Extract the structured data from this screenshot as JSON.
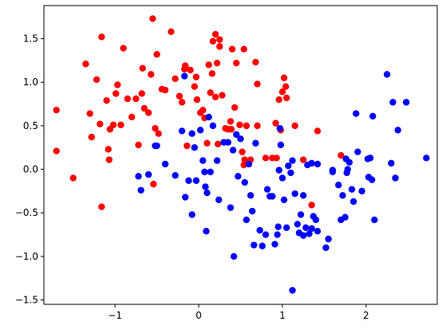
{
  "chart_data": {
    "type": "scatter",
    "title": "",
    "xlabel": "",
    "ylabel": "",
    "xlim": [
      -1.85,
      2.85
    ],
    "ylim": [
      -1.55,
      1.88
    ],
    "xticks": [
      -1,
      0,
      1,
      2
    ],
    "yticks": [
      -1.5,
      -1.0,
      -0.5,
      0.0,
      0.5,
      1.0,
      1.5
    ],
    "xtick_labels": [
      "−1",
      "0",
      "1",
      "2"
    ],
    "ytick_labels": [
      "−1.5",
      "−1.0",
      "−0.5",
      "0.0",
      "0.5",
      "1.0",
      "1.5"
    ],
    "grid": false,
    "legend": false,
    "series": [
      {
        "color": "#ff0000",
        "points": [
          [
            -1.7,
            0.68
          ],
          [
            -1.7,
            0.21
          ],
          [
            -1.5,
            -0.1
          ],
          [
            -1.35,
            1.21
          ],
          [
            -1.3,
            0.64
          ],
          [
            -1.28,
            0.37
          ],
          [
            -1.22,
            1.03
          ],
          [
            -1.18,
            0.52
          ],
          [
            -1.16,
            1.52
          ],
          [
            -1.16,
            -0.43
          ],
          [
            -1.1,
            0.79
          ],
          [
            -1.08,
            0.23
          ],
          [
            -1.07,
            0.11
          ],
          [
            -1.06,
            0.46
          ],
          [
            -1.02,
            0.51
          ],
          [
            -0.99,
            0.87
          ],
          [
            -0.97,
            0.97
          ],
          [
            -0.93,
            0.51
          ],
          [
            -0.9,
            1.39
          ],
          [
            -0.85,
            0.81
          ],
          [
            -0.8,
            0.6
          ],
          [
            -0.75,
            0.81
          ],
          [
            -0.72,
            0.28
          ],
          [
            -0.68,
            0.87
          ],
          [
            -0.67,
            1.16
          ],
          [
            -0.65,
            0.7
          ],
          [
            -0.6,
            0.65
          ],
          [
            -0.57,
            1.09
          ],
          [
            -0.55,
            1.73
          ],
          [
            -0.54,
            -0.17
          ],
          [
            -0.52,
            0.47
          ],
          [
            -0.5,
            1.32
          ],
          [
            -0.48,
            0.41
          ],
          [
            -0.44,
            0.92
          ],
          [
            -0.4,
            0.91
          ],
          [
            -0.33,
            1.58
          ],
          [
            -0.28,
            1.04
          ],
          [
            -0.23,
            0.84
          ],
          [
            -0.2,
            0.77
          ],
          [
            -0.17,
            1.15
          ],
          [
            -0.16,
            1.19
          ],
          [
            -0.14,
            0.27
          ],
          [
            -0.1,
            1.14
          ],
          [
            -0.05,
            0.95
          ],
          [
            -0.03,
            1.06
          ],
          [
            -0.02,
            0.8
          ],
          [
            0.02,
            0.65
          ],
          [
            0.05,
            0.68
          ],
          [
            0.07,
            0.59
          ],
          [
            0.1,
            0.3
          ],
          [
            0.12,
            1.2
          ],
          [
            0.14,
            0.88
          ],
          [
            0.16,
            1.1
          ],
          [
            0.17,
            1.47
          ],
          [
            0.2,
            1.55
          ],
          [
            0.2,
            0.83
          ],
          [
            0.22,
            1.22
          ],
          [
            0.23,
            0.29
          ],
          [
            0.25,
            1.41
          ],
          [
            0.25,
            1.49
          ],
          [
            0.28,
            0.85
          ],
          [
            0.32,
            0.47
          ],
          [
            0.35,
            0.46
          ],
          [
            0.38,
            0.55
          ],
          [
            0.39,
            0.46
          ],
          [
            0.4,
            1.38
          ],
          [
            0.43,
            0.71
          ],
          [
            0.45,
            1.22
          ],
          [
            0.49,
            0.51
          ],
          [
            0.52,
            0.2
          ],
          [
            0.54,
            1.38
          ],
          [
            0.54,
            0.05
          ],
          [
            0.55,
            0.11
          ],
          [
            0.57,
            0.5
          ],
          [
            0.62,
            0.11
          ],
          [
            0.68,
            1.23
          ],
          [
            0.7,
            0.98
          ],
          [
            0.7,
            0.5
          ],
          [
            0.8,
            0.13
          ],
          [
            0.88,
            0.13
          ],
          [
            0.92,
            0.53
          ],
          [
            0.93,
            0.13
          ],
          [
            0.96,
            0.8
          ],
          [
            0.98,
            0.45
          ],
          [
            1.0,
            0.89
          ],
          [
            1.02,
            1.05
          ],
          [
            1.04,
            0.95
          ],
          [
            1.05,
            0.82
          ],
          [
            1.15,
            0.5
          ],
          [
            1.25,
            0.11
          ],
          [
            1.35,
            -0.41
          ],
          [
            1.42,
            0.44
          ],
          [
            1.7,
            0.16
          ]
        ]
      },
      {
        "color": "#0000ff",
        "points": [
          [
            -0.72,
            -0.08
          ],
          [
            -0.69,
            -0.24
          ],
          [
            -0.6,
            -0.06
          ],
          [
            -0.52,
            0.27
          ],
          [
            -0.5,
            0.27
          ],
          [
            -0.4,
            0.06
          ],
          [
            -0.28,
            -0.07
          ],
          [
            -0.2,
            0.44
          ],
          [
            -0.17,
            1.07
          ],
          [
            -0.16,
            -0.32
          ],
          [
            -0.12,
            -0.13
          ],
          [
            -0.08,
            0.41
          ],
          [
            -0.08,
            -0.52
          ],
          [
            -0.05,
            0.25
          ],
          [
            -0.03,
            -0.13
          ],
          [
            0.02,
            0.45
          ],
          [
            0.05,
            0.1
          ],
          [
            0.07,
            -0.03
          ],
          [
            0.08,
            -0.2
          ],
          [
            0.09,
            -0.71
          ],
          [
            0.1,
            -0.27
          ],
          [
            0.12,
            0.6
          ],
          [
            0.14,
            -0.03
          ],
          [
            0.17,
            0.5
          ],
          [
            0.22,
            0.1
          ],
          [
            0.24,
            -0.35
          ],
          [
            0.3,
            0.31
          ],
          [
            0.35,
            0.31
          ],
          [
            0.38,
            -0.44
          ],
          [
            0.41,
            0.22
          ],
          [
            0.42,
            -1.0
          ],
          [
            0.45,
            0.4
          ],
          [
            0.47,
            -0.08
          ],
          [
            0.5,
            0.35
          ],
          [
            0.55,
            -0.15
          ],
          [
            0.57,
            -0.58
          ],
          [
            0.6,
            0.06
          ],
          [
            0.62,
            -0.3
          ],
          [
            0.64,
            -0.48
          ],
          [
            0.66,
            -0.87
          ],
          [
            0.68,
            0.3
          ],
          [
            0.73,
            -0.7
          ],
          [
            0.76,
            -0.88
          ],
          [
            0.8,
            -0.75
          ],
          [
            0.82,
            -0.23
          ],
          [
            0.85,
            -0.31
          ],
          [
            0.88,
            -0.31
          ],
          [
            0.91,
            -0.86
          ],
          [
            0.94,
            -0.75
          ],
          [
            0.95,
            -0.66
          ],
          [
            0.96,
            -0.01
          ],
          [
            0.97,
            0.47
          ],
          [
            0.98,
            0.28
          ],
          [
            1.0,
            -0.1
          ],
          [
            1.02,
            -0.35
          ],
          [
            1.05,
            -0.67
          ],
          [
            1.07,
            0.04
          ],
          [
            1.1,
            -0.04
          ],
          [
            1.12,
            0.1
          ],
          [
            1.12,
            -1.39
          ],
          [
            1.15,
            -0.28
          ],
          [
            1.18,
            -0.63
          ],
          [
            1.2,
            -0.73
          ],
          [
            1.22,
            -0.52
          ],
          [
            1.25,
            -0.3
          ],
          [
            1.25,
            -0.76
          ],
          [
            1.28,
            -0.67
          ],
          [
            1.3,
            0.05
          ],
          [
            1.32,
            -0.74
          ],
          [
            1.35,
            0.07
          ],
          [
            1.35,
            -0.68
          ],
          [
            1.37,
            -0.54
          ],
          [
            1.4,
            -0.58
          ],
          [
            1.42,
            0.06
          ],
          [
            1.42,
            -0.71
          ],
          [
            1.52,
            -0.9
          ],
          [
            1.55,
            -0.8
          ],
          [
            1.6,
            -0.01
          ],
          [
            1.6,
            -0.03
          ],
          [
            1.67,
            -0.18
          ],
          [
            1.7,
            -0.58
          ],
          [
            1.72,
            -0.3
          ],
          [
            1.75,
            -0.55
          ],
          [
            1.76,
            0.12
          ],
          [
            1.77,
            -0.04
          ],
          [
            1.78,
            0.0
          ],
          [
            1.8,
            0.08
          ],
          [
            1.83,
            -0.23
          ],
          [
            1.85,
            -0.37
          ],
          [
            1.88,
            0.64
          ],
          [
            1.9,
            0.2
          ],
          [
            1.95,
            -0.25
          ],
          [
            2.02,
            0.12
          ],
          [
            2.03,
            -0.09
          ],
          [
            2.05,
            0.13
          ],
          [
            2.07,
            -0.12
          ],
          [
            2.08,
            0.61
          ],
          [
            2.1,
            -0.58
          ],
          [
            2.25,
            1.09
          ],
          [
            2.3,
            0.07
          ],
          [
            2.32,
            0.77
          ],
          [
            2.35,
            -0.1
          ],
          [
            2.38,
            0.45
          ],
          [
            2.48,
            0.77
          ],
          [
            2.72,
            0.13
          ]
        ]
      }
    ]
  }
}
